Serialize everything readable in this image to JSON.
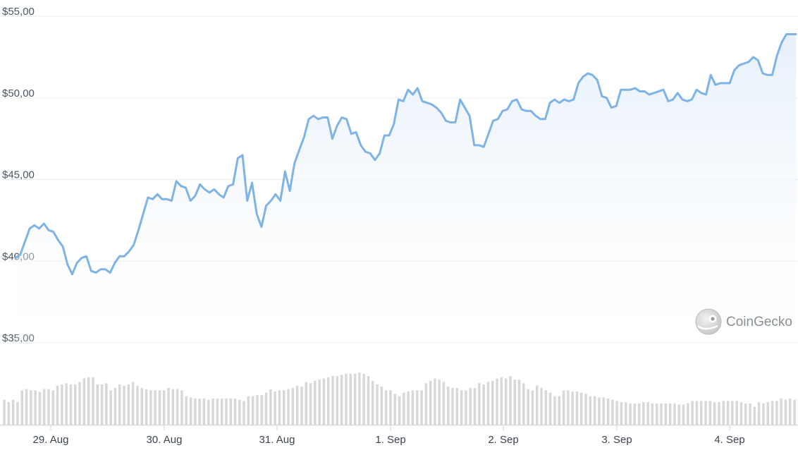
{
  "chart_data": {
    "type": "line",
    "y_ticks": [
      "$55,00",
      "$50,00",
      "$45,00",
      "$40,00",
      "$35,00"
    ],
    "y_tick_values": [
      55,
      50,
      45,
      40,
      35
    ],
    "ylim": [
      35,
      55
    ],
    "x_ticks": [
      "29. Aug",
      "30. Aug",
      "31. Aug",
      "1. Sep",
      "2. Sep",
      "3. Sep",
      "4. Sep"
    ],
    "xlim": [
      "2024-08-28T15:00",
      "2024-09-04T14:00"
    ],
    "grid": true,
    "series": [
      {
        "values": [
          40.2,
          40.4,
          41.2,
          42.0,
          42.2,
          42.0,
          42.3,
          41.9,
          41.8,
          41.3,
          40.9,
          39.8,
          39.2,
          39.9,
          40.2,
          40.3,
          39.4,
          39.3,
          39.5,
          39.5,
          39.3,
          39.9,
          40.3,
          40.3,
          40.6,
          41.0,
          41.9,
          42.9,
          43.9,
          43.8,
          44.1,
          43.8,
          43.8,
          43.7,
          44.9,
          44.6,
          44.5,
          43.7,
          44.0,
          44.7,
          44.4,
          44.2,
          44.4,
          44.1,
          43.9,
          44.6,
          44.7,
          46.3,
          46.5,
          43.7,
          44.8,
          42.9,
          42.1,
          43.4,
          43.7,
          44.1,
          43.7,
          45.5,
          44.3,
          46.0,
          46.8,
          47.6,
          48.7,
          48.9,
          48.7,
          48.8,
          48.8,
          47.5,
          48.3,
          48.8,
          48.7,
          47.8,
          47.9,
          47.1,
          46.7,
          46.6,
          46.2,
          46.6,
          47.7,
          47.7,
          48.4,
          49.9,
          49.8,
          50.5,
          50.2,
          50.6,
          49.8,
          49.7,
          49.6,
          49.4,
          49.1,
          48.6,
          48.5,
          48.5,
          49.9,
          49.4,
          48.9,
          47.1,
          47.1,
          47.0,
          47.8,
          48.6,
          48.7,
          49.2,
          49.3,
          49.8,
          49.9,
          49.3,
          49.2,
          49.2,
          48.9,
          48.7,
          48.7,
          49.7,
          49.9,
          49.7,
          49.9,
          49.8,
          49.9,
          50.9,
          51.3,
          51.5,
          51.4,
          51.1,
          50.1,
          50.0,
          49.4,
          49.5,
          50.5,
          50.5,
          50.5,
          50.6,
          50.4,
          50.4,
          50.2,
          50.3,
          50.4,
          50.5,
          49.8,
          49.9,
          50.3,
          49.9,
          49.8,
          49.9,
          50.5,
          50.3,
          50.2,
          51.4,
          50.8,
          50.9,
          50.9,
          50.9,
          51.7,
          52.0,
          52.1,
          52.2,
          52.5,
          52.3,
          51.5,
          51.4,
          51.4,
          52.6,
          53.4,
          53.9,
          53.9,
          53.9
        ]
      }
    ],
    "volume_relative": [
      0.42,
      0.38,
      0.42,
      0.38,
      0.58,
      0.6,
      0.58,
      0.58,
      0.55,
      0.6,
      0.6,
      0.58,
      0.66,
      0.68,
      0.7,
      0.68,
      0.68,
      0.72,
      0.78,
      0.8,
      0.8,
      0.68,
      0.68,
      0.7,
      0.58,
      0.62,
      0.68,
      0.66,
      0.68,
      0.72,
      0.66,
      0.62,
      0.6,
      0.58,
      0.58,
      0.58,
      0.58,
      0.62,
      0.6,
      0.6,
      0.58,
      0.48,
      0.46,
      0.44,
      0.44,
      0.44,
      0.42,
      0.44,
      0.44,
      0.44,
      0.44,
      0.44,
      0.44,
      0.42,
      0.4,
      0.48,
      0.48,
      0.5,
      0.5,
      0.54,
      0.6,
      0.56,
      0.58,
      0.58,
      0.6,
      0.62,
      0.66,
      0.64,
      0.72,
      0.7,
      0.74,
      0.76,
      0.78,
      0.8,
      0.82,
      0.82,
      0.84,
      0.86,
      0.86,
      0.86,
      0.88,
      0.86,
      0.82,
      0.74,
      0.68,
      0.64,
      0.58,
      0.58,
      0.52,
      0.48,
      0.54,
      0.56,
      0.58,
      0.58,
      0.58,
      0.7,
      0.74,
      0.78,
      0.76,
      0.72,
      0.64,
      0.62,
      0.62,
      0.58,
      0.58,
      0.62,
      0.62,
      0.7,
      0.68,
      0.72,
      0.74,
      0.78,
      0.8,
      0.78,
      0.82,
      0.76,
      0.76,
      0.7,
      0.6,
      0.58,
      0.66,
      0.62,
      0.58,
      0.54,
      0.48,
      0.48,
      0.58,
      0.58,
      0.56,
      0.56,
      0.54,
      0.52,
      0.48,
      0.48,
      0.46,
      0.46,
      0.44,
      0.42,
      0.4,
      0.38,
      0.38,
      0.36,
      0.36,
      0.36,
      0.38,
      0.38,
      0.36,
      0.36,
      0.36,
      0.36,
      0.36,
      0.36,
      0.34,
      0.34,
      0.36,
      0.4,
      0.4,
      0.4,
      0.4,
      0.4,
      0.38,
      0.38,
      0.4,
      0.4,
      0.4,
      0.4,
      0.38,
      0.36,
      0.36,
      0.3,
      0.38,
      0.36,
      0.38,
      0.4,
      0.4,
      0.44,
      0.42,
      0.44,
      0.42
    ]
  },
  "watermark": {
    "text": "CoinGecko"
  },
  "colors": {
    "line": "#7fb3e6",
    "area_top": "#e3eefa",
    "area_bottom": "#ffffff",
    "grid": "#ebedf0",
    "volume": "#d8d8d8",
    "axis_text": "#4a5568"
  }
}
